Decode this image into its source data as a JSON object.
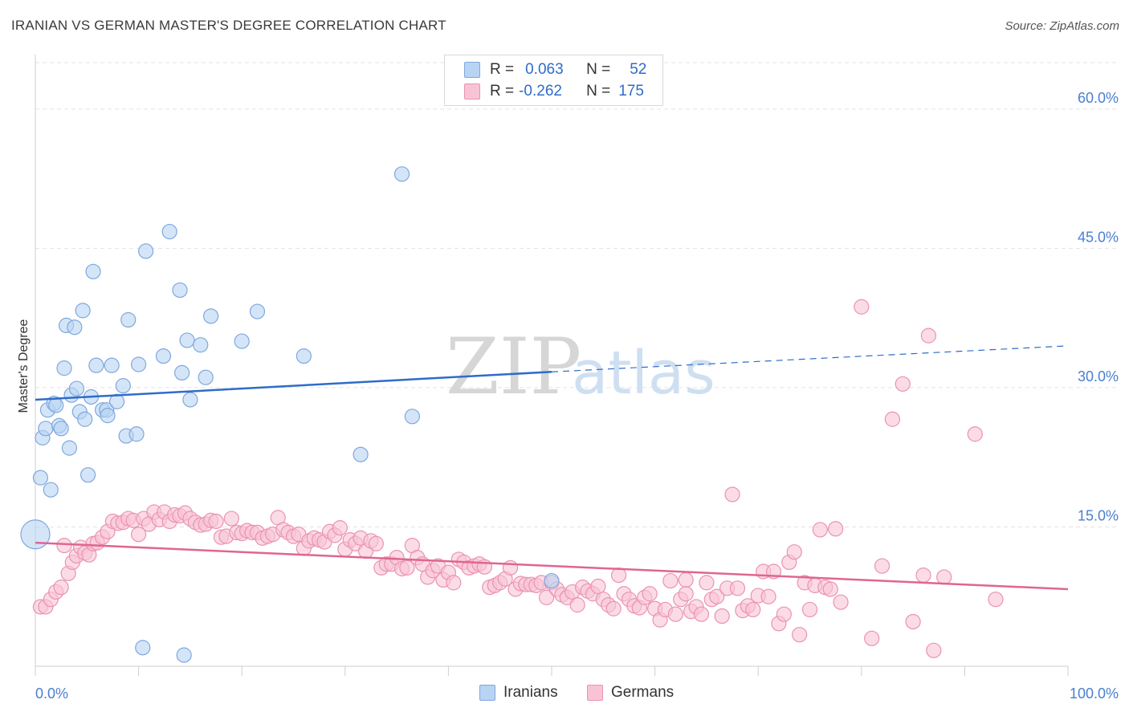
{
  "title": "IRANIAN VS GERMAN MASTER'S DEGREE CORRELATION CHART",
  "source": "Source: ZipAtlas.com",
  "watermark": {
    "zip": "ZIP",
    "atlas": "atlas"
  },
  "legend": {
    "rows": [
      {
        "r_label": "R =",
        "r_value": "0.063",
        "n_label": "N =",
        "n_value": "52",
        "color": "#b9d3f3"
      },
      {
        "r_label": "R =",
        "r_value": "-0.262",
        "n_label": "N =",
        "n_value": "175",
        "color": "#f8c4d5"
      }
    ]
  },
  "bottom_legend": {
    "iranians": "Iranians",
    "germans": "Germans"
  },
  "colors": {
    "iranians_fill": "#b9d3f3",
    "iranians_stroke": "#7ea8de",
    "iranians_line": "#2f6cc8",
    "germans_fill": "#f8c4d5",
    "germans_stroke": "#eb92b1",
    "germans_line": "#e06593",
    "tick": "#4a7fd0"
  },
  "chart_data": {
    "type": "scatter",
    "title": "IRANIAN VS GERMAN MASTER'S DEGREE CORRELATION CHART",
    "xlabel": "",
    "ylabel": "Master's Degree",
    "xlim": [
      0,
      100
    ],
    "ylim": [
      0,
      65
    ],
    "x_tick_labels": [
      {
        "value": 0,
        "label": "0.0%"
      },
      {
        "value": 100,
        "label": "100.0%"
      }
    ],
    "y_tick_labels": [
      {
        "value": 15,
        "label": "15.0%"
      },
      {
        "value": 30,
        "label": "30.0%"
      },
      {
        "value": 45,
        "label": "45.0%"
      },
      {
        "value": 60,
        "label": "60.0%"
      }
    ],
    "grid": true,
    "legend_position": "top-center",
    "series": [
      {
        "name": "Iranians",
        "trend": {
          "x0": 0,
          "y0": 28.7,
          "x1": 50,
          "y1": 31.7,
          "dashed_to_x": 100,
          "dashed_to_y": 34.5
        },
        "points": [
          [
            0,
            14.2,
            "big"
          ],
          [
            0.5,
            20.3
          ],
          [
            0.7,
            24.6
          ],
          [
            1.0,
            25.6
          ],
          [
            1.2,
            27.6
          ],
          [
            1.5,
            19.0
          ],
          [
            1.8,
            28.3
          ],
          [
            2.0,
            28.1
          ],
          [
            2.3,
            25.9
          ],
          [
            2.5,
            25.6
          ],
          [
            2.8,
            32.1
          ],
          [
            3.0,
            36.7
          ],
          [
            3.3,
            23.5
          ],
          [
            3.5,
            29.2
          ],
          [
            3.8,
            36.5
          ],
          [
            4.0,
            29.9
          ],
          [
            4.3,
            27.4
          ],
          [
            4.6,
            38.3
          ],
          [
            4.8,
            26.6
          ],
          [
            5.1,
            20.6
          ],
          [
            5.4,
            29.0
          ],
          [
            5.6,
            42.5
          ],
          [
            5.9,
            32.4
          ],
          [
            6.5,
            27.6
          ],
          [
            6.9,
            27.6
          ],
          [
            7.0,
            27.0
          ],
          [
            7.4,
            32.4
          ],
          [
            7.9,
            28.5
          ],
          [
            8.5,
            30.2
          ],
          [
            8.8,
            24.8
          ],
          [
            9.0,
            37.3
          ],
          [
            9.8,
            25.0
          ],
          [
            10.0,
            32.5
          ],
          [
            10.4,
            2.0
          ],
          [
            10.7,
            44.7
          ],
          [
            12.4,
            33.4
          ],
          [
            13.0,
            46.8
          ],
          [
            14.0,
            40.5
          ],
          [
            14.2,
            31.6
          ],
          [
            14.4,
            1.2
          ],
          [
            14.7,
            35.1
          ],
          [
            15.0,
            28.7
          ],
          [
            16.0,
            34.6
          ],
          [
            16.5,
            31.1
          ],
          [
            17.0,
            37.7
          ],
          [
            20.0,
            35.0
          ],
          [
            21.5,
            38.2
          ],
          [
            26.0,
            33.4
          ],
          [
            31.5,
            22.8
          ],
          [
            35.5,
            53.0
          ],
          [
            36.5,
            26.9
          ],
          [
            50.0,
            9.2
          ]
        ]
      },
      {
        "name": "Germans",
        "trend": {
          "x0": 0,
          "y0": 13.3,
          "x1": 100,
          "y1": 8.3
        },
        "points": [
          [
            0.5,
            6.4
          ],
          [
            1.0,
            6.4
          ],
          [
            1.5,
            7.2
          ],
          [
            2.0,
            8.0
          ],
          [
            2.5,
            8.5
          ],
          [
            2.8,
            13.0
          ],
          [
            3.2,
            10.0
          ],
          [
            3.6,
            11.2
          ],
          [
            4.0,
            11.9
          ],
          [
            4.4,
            12.8
          ],
          [
            4.8,
            12.2
          ],
          [
            5.2,
            12.0
          ],
          [
            5.6,
            13.2
          ],
          [
            6.0,
            13.3
          ],
          [
            6.5,
            13.9
          ],
          [
            7.0,
            14.5
          ],
          [
            7.5,
            15.6
          ],
          [
            8.0,
            15.4
          ],
          [
            8.5,
            15.5
          ],
          [
            9.0,
            15.9
          ],
          [
            9.5,
            15.7
          ],
          [
            10.0,
            14.2
          ],
          [
            10.5,
            15.9
          ],
          [
            11.0,
            15.3
          ],
          [
            11.5,
            16.6
          ],
          [
            12.0,
            15.8
          ],
          [
            12.5,
            16.6
          ],
          [
            13.0,
            15.6
          ],
          [
            13.5,
            16.3
          ],
          [
            14.0,
            16.2
          ],
          [
            14.5,
            16.5
          ],
          [
            15.0,
            15.9
          ],
          [
            15.5,
            15.5
          ],
          [
            16.0,
            15.2
          ],
          [
            16.5,
            15.3
          ],
          [
            17.0,
            15.7
          ],
          [
            17.5,
            15.6
          ],
          [
            18.0,
            13.9
          ],
          [
            18.5,
            14.0
          ],
          [
            19.0,
            15.9
          ],
          [
            19.5,
            14.4
          ],
          [
            20.0,
            14.3
          ],
          [
            20.5,
            14.6
          ],
          [
            21.0,
            14.4
          ],
          [
            21.5,
            14.4
          ],
          [
            22.0,
            13.8
          ],
          [
            22.5,
            14.0
          ],
          [
            23.0,
            14.2
          ],
          [
            23.5,
            16.0
          ],
          [
            24.0,
            14.7
          ],
          [
            24.5,
            14.4
          ],
          [
            25.0,
            14.0
          ],
          [
            25.5,
            14.2
          ],
          [
            26.0,
            12.7
          ],
          [
            26.5,
            13.5
          ],
          [
            27.0,
            13.8
          ],
          [
            27.5,
            13.6
          ],
          [
            28.0,
            13.4
          ],
          [
            28.5,
            14.5
          ],
          [
            29.0,
            14.1
          ],
          [
            29.5,
            14.9
          ],
          [
            30.0,
            12.6
          ],
          [
            30.5,
            13.6
          ],
          [
            31.0,
            13.2
          ],
          [
            31.5,
            13.8
          ],
          [
            32.0,
            12.4
          ],
          [
            32.5,
            13.5
          ],
          [
            33.0,
            13.2
          ],
          [
            33.5,
            10.6
          ],
          [
            34.0,
            11.0
          ],
          [
            34.5,
            11.0
          ],
          [
            35.0,
            11.7
          ],
          [
            35.5,
            10.5
          ],
          [
            36.0,
            10.6
          ],
          [
            36.5,
            13.0
          ],
          [
            37.0,
            11.7
          ],
          [
            37.5,
            11.0
          ],
          [
            38.0,
            9.6
          ],
          [
            38.5,
            10.3
          ],
          [
            39.0,
            10.8
          ],
          [
            39.5,
            9.3
          ],
          [
            40.0,
            10.1
          ],
          [
            40.5,
            9.0
          ],
          [
            41.0,
            11.5
          ],
          [
            41.5,
            11.2
          ],
          [
            42.0,
            10.6
          ],
          [
            42.5,
            10.8
          ],
          [
            43.0,
            11.0
          ],
          [
            43.5,
            10.7
          ],
          [
            44.0,
            8.5
          ],
          [
            44.5,
            8.7
          ],
          [
            45.0,
            9.0
          ],
          [
            45.5,
            9.4
          ],
          [
            46.0,
            10.6
          ],
          [
            46.5,
            8.3
          ],
          [
            47.0,
            8.9
          ],
          [
            47.5,
            8.8
          ],
          [
            48.0,
            8.8
          ],
          [
            48.5,
            8.7
          ],
          [
            49.0,
            9.0
          ],
          [
            49.5,
            7.4
          ],
          [
            50.0,
            9.0
          ],
          [
            50.5,
            8.3
          ],
          [
            51.0,
            7.7
          ],
          [
            51.5,
            7.4
          ],
          [
            52.0,
            8.0
          ],
          [
            52.5,
            6.6
          ],
          [
            53.0,
            8.5
          ],
          [
            53.5,
            8.1
          ],
          [
            54.0,
            7.8
          ],
          [
            54.5,
            8.6
          ],
          [
            55.0,
            7.2
          ],
          [
            55.5,
            6.6
          ],
          [
            56.0,
            6.2
          ],
          [
            56.5,
            9.8
          ],
          [
            57.0,
            7.8
          ],
          [
            57.5,
            7.2
          ],
          [
            58.0,
            6.5
          ],
          [
            58.5,
            6.3
          ],
          [
            59.0,
            7.4
          ],
          [
            59.5,
            7.8
          ],
          [
            60.0,
            6.2
          ],
          [
            60.5,
            5.0
          ],
          [
            61.0,
            6.1
          ],
          [
            61.5,
            9.2
          ],
          [
            62.0,
            5.6
          ],
          [
            62.5,
            7.2
          ],
          [
            63.0,
            7.8
          ],
          [
            63.5,
            5.9
          ],
          [
            64.0,
            6.4
          ],
          [
            64.5,
            5.6
          ],
          [
            65.0,
            9.0
          ],
          [
            65.5,
            7.2
          ],
          [
            66.0,
            7.5
          ],
          [
            66.5,
            5.4
          ],
          [
            67.0,
            8.4
          ],
          [
            67.5,
            18.5
          ],
          [
            68.0,
            8.4
          ],
          [
            68.5,
            6.0
          ],
          [
            69.0,
            6.5
          ],
          [
            69.5,
            6.1
          ],
          [
            70.0,
            7.6
          ],
          [
            70.5,
            10.2
          ],
          [
            71.0,
            7.5
          ],
          [
            71.5,
            10.2
          ],
          [
            72.0,
            4.6
          ],
          [
            72.5,
            5.6
          ],
          [
            73.0,
            11.2
          ],
          [
            73.5,
            12.3
          ],
          [
            74.0,
            3.4
          ],
          [
            74.5,
            9.0
          ],
          [
            75.0,
            6.1
          ],
          [
            75.5,
            8.7
          ],
          [
            76.0,
            14.7
          ],
          [
            76.5,
            8.5
          ],
          [
            77.0,
            8.3
          ],
          [
            77.5,
            14.8
          ],
          [
            78.0,
            6.9
          ],
          [
            80.0,
            38.7
          ],
          [
            81.0,
            3.0
          ],
          [
            82.0,
            10.8
          ],
          [
            83.0,
            26.6
          ],
          [
            84.0,
            30.4
          ],
          [
            85.0,
            4.8
          ],
          [
            86.0,
            9.8
          ],
          [
            86.5,
            35.6
          ],
          [
            87.0,
            1.7
          ],
          [
            88.0,
            9.6
          ],
          [
            91.0,
            25.0
          ],
          [
            93.0,
            7.2
          ],
          [
            63.0,
            9.3
          ]
        ]
      }
    ]
  }
}
